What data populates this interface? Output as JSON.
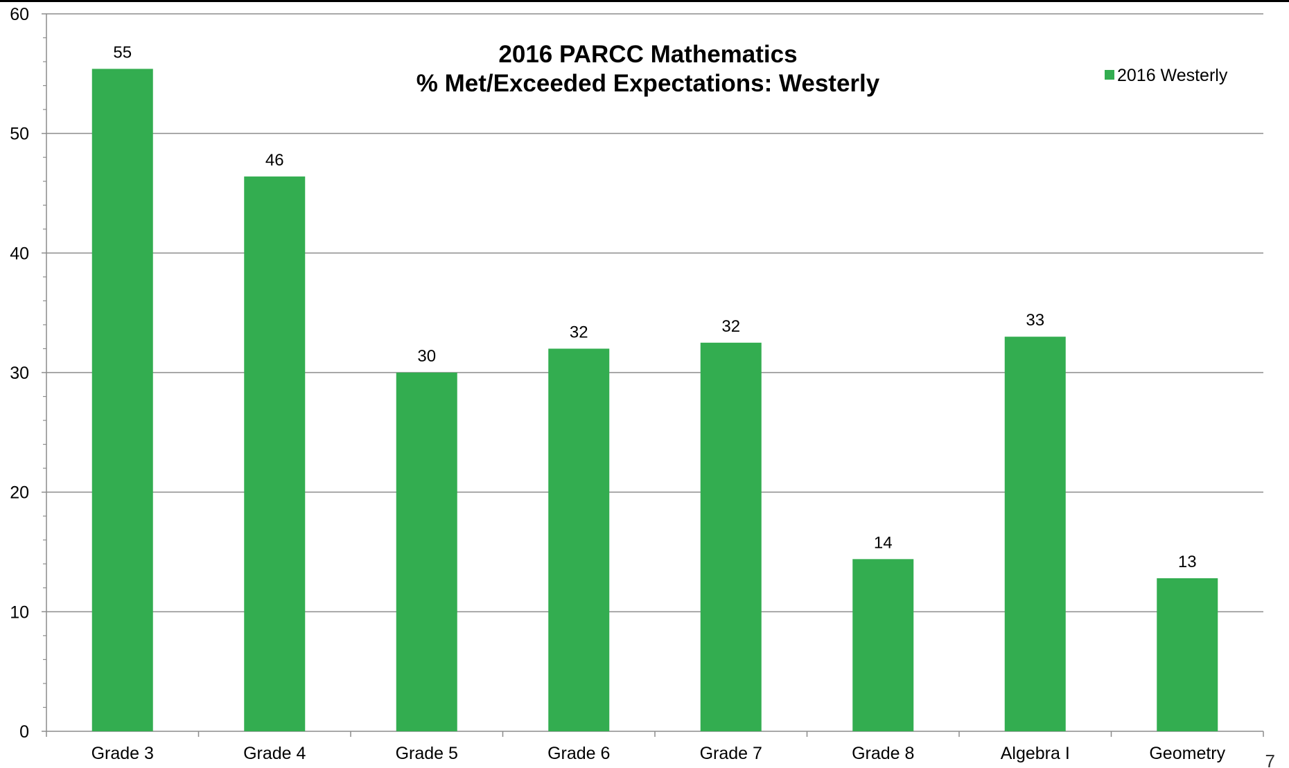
{
  "chart_data": {
    "type": "bar",
    "title": [
      "2016 PARCC Mathematics",
      "% Met/Exceeded Expectations: Westerly"
    ],
    "categories": [
      "Grade 3",
      "Grade 4",
      "Grade 5",
      "Grade 6",
      "Grade 7",
      "Grade 8",
      "Algebra I",
      "Geometry"
    ],
    "series": [
      {
        "name": "2016 Westerly",
        "values": [
          55.4,
          46.4,
          30.0,
          32.0,
          32.5,
          14.4,
          33.0,
          12.8
        ],
        "labels": [
          "55",
          "46",
          "30",
          "32",
          "32",
          "14",
          "33",
          "13"
        ],
        "color": "#33AD50"
      }
    ],
    "xlabel": "",
    "ylabel": "",
    "ylim": [
      0,
      60
    ],
    "yticks": [
      0,
      10,
      20,
      30,
      40,
      50,
      60
    ],
    "grid": true,
    "legend_position": "top-right"
  },
  "page_number": "7"
}
